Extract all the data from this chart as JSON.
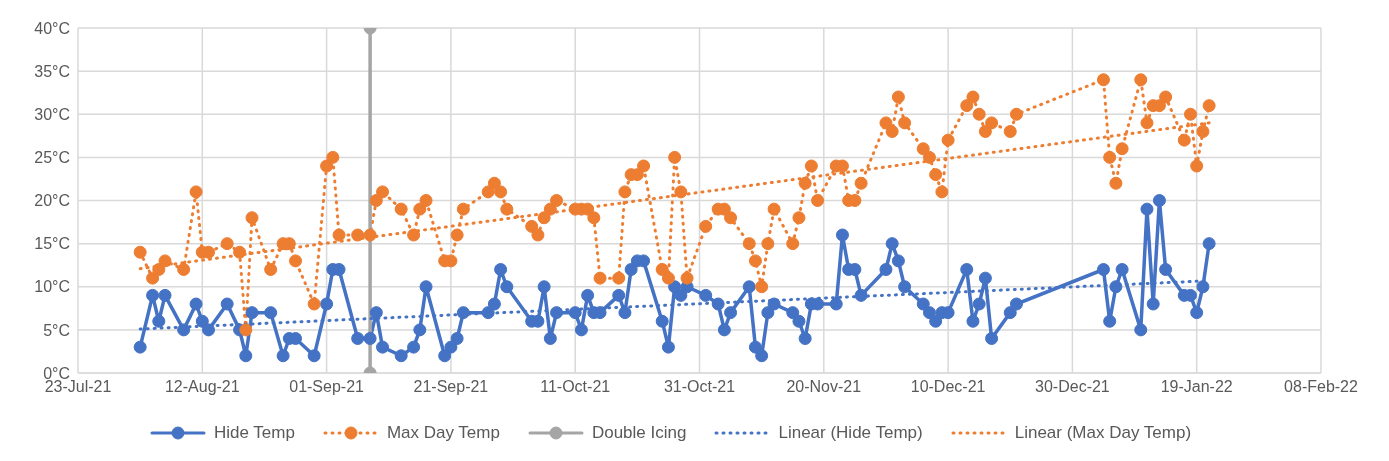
{
  "chart_data": {
    "type": "line",
    "x": [
      "2021-08-02",
      "2021-08-04",
      "2021-08-05",
      "2021-08-06",
      "2021-08-09",
      "2021-08-11",
      "2021-08-12",
      "2021-08-13",
      "2021-08-16",
      "2021-08-18",
      "2021-08-19",
      "2021-08-20",
      "2021-08-23",
      "2021-08-25",
      "2021-08-26",
      "2021-08-27",
      "2021-08-30",
      "2021-09-01",
      "2021-09-02",
      "2021-09-03",
      "2021-09-06",
      "2021-09-08",
      "2021-09-09",
      "2021-09-10",
      "2021-09-13",
      "2021-09-15",
      "2021-09-16",
      "2021-09-17",
      "2021-09-20",
      "2021-09-21",
      "2021-09-22",
      "2021-09-23",
      "2021-09-27",
      "2021-09-28",
      "2021-09-29",
      "2021-09-30",
      "2021-10-04",
      "2021-10-05",
      "2021-10-06",
      "2021-10-07",
      "2021-10-08",
      "2021-10-11",
      "2021-10-12",
      "2021-10-13",
      "2021-10-14",
      "2021-10-15",
      "2021-10-18",
      "2021-10-19",
      "2021-10-20",
      "2021-10-21",
      "2021-10-22",
      "2021-10-25",
      "2021-10-26",
      "2021-10-27",
      "2021-10-28",
      "2021-10-29",
      "2021-11-01",
      "2021-11-03",
      "2021-11-04",
      "2021-11-05",
      "2021-11-08",
      "2021-11-09",
      "2021-11-10",
      "2021-11-11",
      "2021-11-12",
      "2021-11-15",
      "2021-11-16",
      "2021-11-17",
      "2021-11-18",
      "2021-11-19",
      "2021-11-22",
      "2021-11-23",
      "2021-11-24",
      "2021-11-25",
      "2021-11-26",
      "2021-11-30",
      "2021-12-01",
      "2021-12-02",
      "2021-12-03",
      "2021-12-06",
      "2021-12-07",
      "2021-12-08",
      "2021-12-09",
      "2021-12-10",
      "2021-12-13",
      "2021-12-14",
      "2021-12-15",
      "2021-12-16",
      "2021-12-17",
      "2021-12-20",
      "2021-12-21",
      "2022-01-04",
      "2022-01-05",
      "2022-01-06",
      "2022-01-07",
      "2022-01-10",
      "2022-01-11",
      "2022-01-12",
      "2022-01-13",
      "2022-01-14",
      "2022-01-17",
      "2022-01-18",
      "2022-01-19",
      "2022-01-20",
      "2022-01-21"
    ],
    "series": [
      {
        "name": "Hide Temp",
        "color": "#4472c4",
        "marker": "circle",
        "line_style": "solid",
        "values": [
          3,
          9,
          6,
          9,
          5,
          8,
          6,
          5,
          8,
          5,
          2,
          7,
          7,
          2,
          4,
          4,
          2,
          8,
          12,
          12,
          4,
          4,
          7,
          3,
          2,
          3,
          5,
          10,
          2,
          3,
          4,
          7,
          7,
          8,
          12,
          10,
          6,
          6,
          10,
          4,
          7,
          7,
          5,
          9,
          7,
          7,
          9,
          7,
          12,
          13,
          13,
          6,
          3,
          10,
          9,
          10,
          9,
          8,
          5,
          7,
          10,
          3,
          2,
          7,
          8,
          7,
          6,
          4,
          8,
          8,
          8,
          16,
          12,
          12,
          9,
          12,
          15,
          13,
          10,
          8,
          7,
          6,
          7,
          7,
          12,
          6,
          8,
          11,
          4,
          7,
          8,
          12,
          6,
          10,
          12,
          5,
          19,
          8,
          20,
          12,
          9,
          9,
          7,
          10,
          15
        ]
      },
      {
        "name": "Max Day Temp",
        "color": "#ed7d31",
        "marker": "circle",
        "line_style": "dotted",
        "values": [
          14,
          11,
          12,
          13,
          12,
          21,
          14,
          14,
          15,
          14,
          5,
          18,
          12,
          15,
          15,
          13,
          8,
          24,
          25,
          16,
          16,
          16,
          20,
          21,
          19,
          16,
          19,
          20,
          13,
          13,
          16,
          19,
          21,
          22,
          21,
          19,
          17,
          16,
          18,
          19,
          20,
          19,
          19,
          19,
          18,
          11,
          11,
          21,
          23,
          23,
          24,
          12,
          11,
          25,
          21,
          11,
          17,
          19,
          19,
          18,
          15,
          13,
          10,
          15,
          19,
          15,
          18,
          22,
          24,
          20,
          24,
          24,
          20,
          20,
          22,
          29,
          28,
          32,
          29,
          26,
          25,
          23,
          21,
          27,
          31,
          32,
          30,
          28,
          29,
          28,
          30,
          34,
          25,
          22,
          26,
          34,
          29,
          31,
          31,
          32,
          27,
          30,
          24,
          28,
          31
        ]
      },
      {
        "name": "Double Icing",
        "color": "#a5a5a5",
        "marker": "circle",
        "line_style": "solid",
        "x": [
          "2021-09-08",
          "2021-09-08"
        ],
        "values": [
          0,
          40
        ]
      },
      {
        "name": "Linear (Hide Temp)",
        "color": "#4472c4",
        "marker": "none",
        "line_style": "dotted",
        "x": [
          "2021-08-02",
          "2022-01-21"
        ],
        "values": [
          5.1,
          10.7
        ]
      },
      {
        "name": "Linear (Max Day Temp)",
        "color": "#ed7d31",
        "marker": "none",
        "line_style": "dotted",
        "x": [
          "2021-08-02",
          "2022-01-21"
        ],
        "values": [
          12.1,
          29
        ]
      }
    ],
    "xlim": [
      "2021-07-23",
      "2022-02-08"
    ],
    "xticks": [
      {
        "value": "2021-07-23",
        "label": "23-Jul-21"
      },
      {
        "value": "2021-08-12",
        "label": "12-Aug-21"
      },
      {
        "value": "2021-09-01",
        "label": "01-Sep-21"
      },
      {
        "value": "2021-09-21",
        "label": "21-Sep-21"
      },
      {
        "value": "2021-10-11",
        "label": "11-Oct-21"
      },
      {
        "value": "2021-10-31",
        "label": "31-Oct-21"
      },
      {
        "value": "2021-11-20",
        "label": "20-Nov-21"
      },
      {
        "value": "2021-12-10",
        "label": "10-Dec-21"
      },
      {
        "value": "2021-12-30",
        "label": "30-Dec-21"
      },
      {
        "value": "2022-01-19",
        "label": "19-Jan-22"
      },
      {
        "value": "2022-02-08",
        "label": "08-Feb-22"
      }
    ],
    "ylim": [
      0,
      40
    ],
    "yticks": [
      {
        "value": 0,
        "label": "0°C"
      },
      {
        "value": 5,
        "label": "5°C"
      },
      {
        "value": 10,
        "label": "10°C"
      },
      {
        "value": 15,
        "label": "15°C"
      },
      {
        "value": 20,
        "label": "20°C"
      },
      {
        "value": 25,
        "label": "25°C"
      },
      {
        "value": 30,
        "label": "30°C"
      },
      {
        "value": 35,
        "label": "35°C"
      },
      {
        "value": 40,
        "label": "40°C"
      }
    ],
    "grid": true,
    "legend": "bottom"
  }
}
